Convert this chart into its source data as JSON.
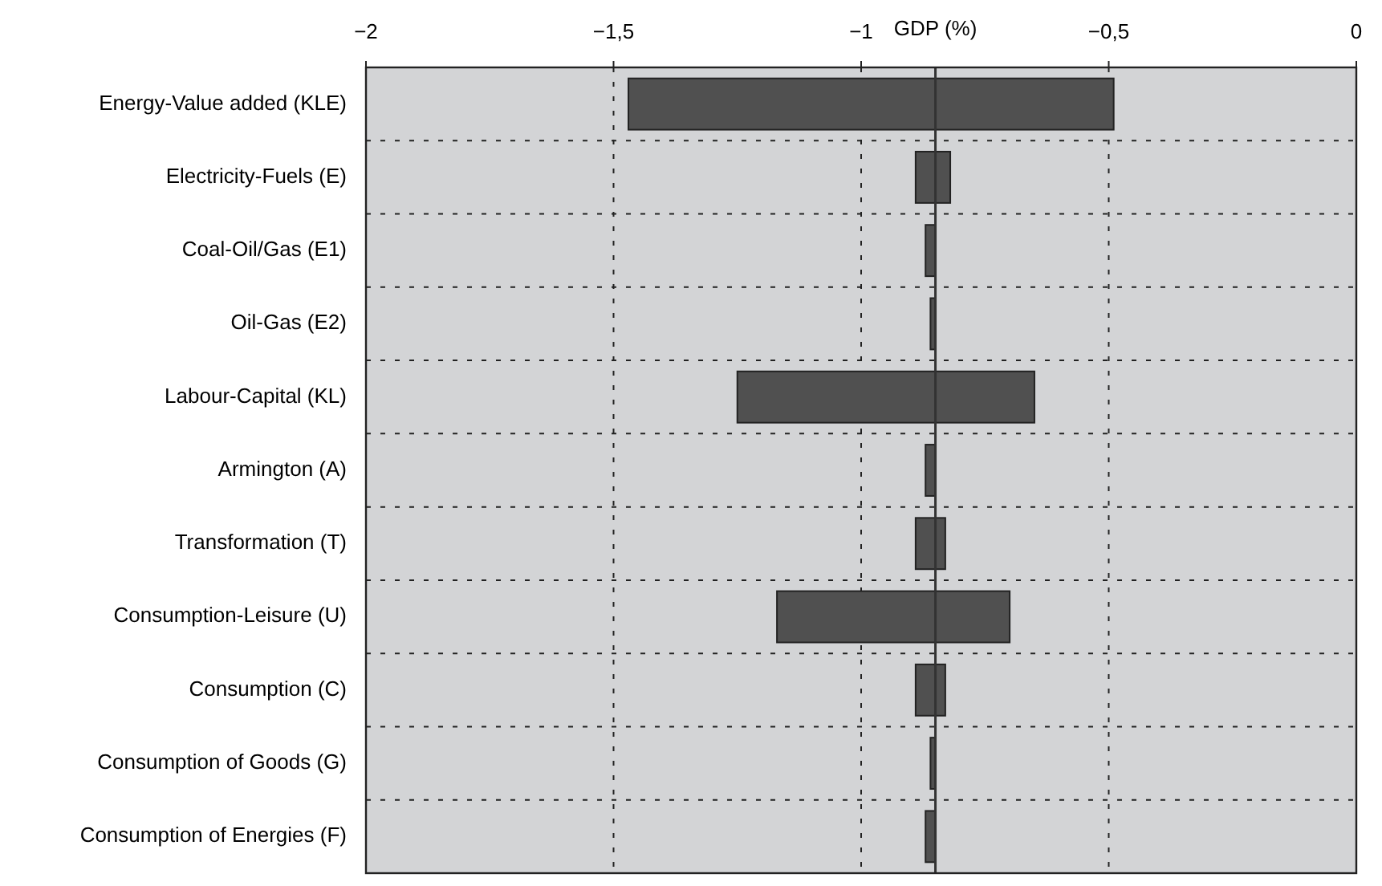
{
  "chart_data": {
    "type": "bar",
    "orientation": "horizontal",
    "xlabel": "GDP (%)",
    "categories": [
      "Energy-Value added (KLE)",
      "Electricity-Fuels (E)",
      "Coal-Oil/Gas (E1)",
      "Oil-Gas (E2)",
      "Labour-Capital (KL)",
      "Armington (A)",
      "Transformation (T)",
      "Consumption-Leisure (U)",
      "Consumption (C)",
      "Consumption of Goods (G)",
      "Consumption of Energies (F)"
    ],
    "base": [
      -1.47,
      -0.89,
      -0.87,
      -0.86,
      -1.25,
      -0.87,
      -0.89,
      -1.17,
      -0.89,
      -0.86,
      -0.87
    ],
    "values": [
      0.98,
      0.07,
      0.02,
      0.01,
      0.6,
      0.02,
      0.06,
      0.47,
      0.06,
      0.01,
      0.02
    ],
    "color": "#505050",
    "xlim": [
      -2,
      0
    ],
    "xticks": [
      {
        "value": -2,
        "label": "−2"
      },
      {
        "value": -1.5,
        "label": "−1,5"
      },
      {
        "value": -1,
        "label": "−1"
      },
      {
        "value": -0.5,
        "label": "−0,5"
      },
      {
        "value": 0,
        "label": "0"
      }
    ],
    "ref_lines": [
      {
        "axis": "x",
        "value": -0.85,
        "color": "#333333"
      }
    ],
    "grid": true
  }
}
